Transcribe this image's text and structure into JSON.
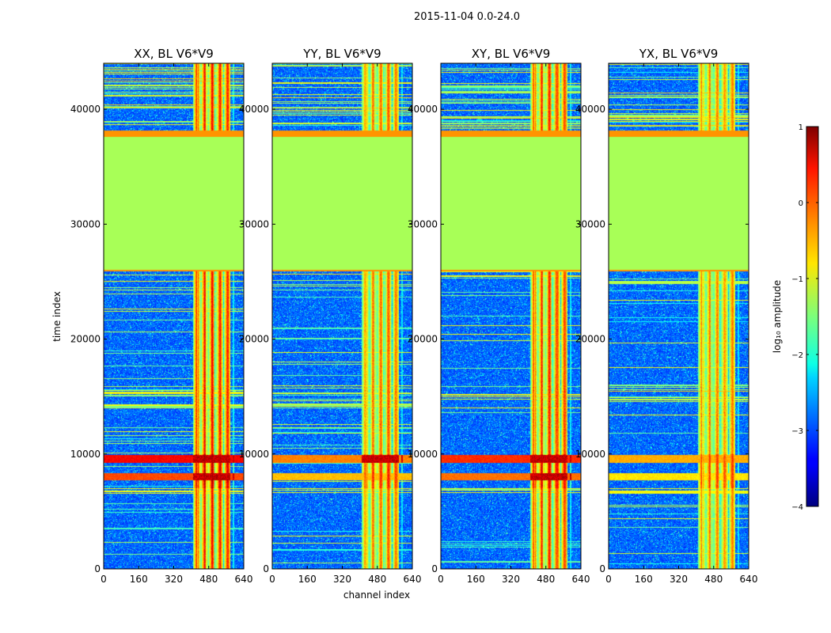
{
  "chart_data": {
    "type": "heatmap",
    "title": "2015-11-04 0.0-24.0",
    "xlabel": "channel index",
    "ylabel": "time index",
    "xlim": [
      0,
      640
    ],
    "ylim": [
      0,
      44000
    ],
    "x_ticks": [
      0,
      160,
      320,
      480,
      640
    ],
    "y_ticks": [
      0,
      10000,
      20000,
      30000,
      40000
    ],
    "x_tick_labels": [
      "0",
      "160",
      "320",
      "480",
      "640"
    ],
    "y_tick_labels": [
      "0",
      "10000",
      "20000",
      "30000",
      "40000"
    ],
    "colormap": "jet",
    "panels": [
      {
        "title": "XX, BL V6*V9",
        "rfi_intensity": 1.0
      },
      {
        "title": "YY, BL V6*V9",
        "rfi_intensity": 0.85
      },
      {
        "title": "XY, BL V6*V9",
        "rfi_intensity": 0.95
      },
      {
        "title": "YX, BL V6*V9",
        "rfi_intensity": 0.8
      }
    ],
    "flagged_time_range": [
      26000,
      37600
    ],
    "flagged_value_log10": -1.3,
    "rfi_channel_range": [
      410,
      580
    ],
    "colorbar": {
      "label": "log₁₀ amplitude",
      "min": -4,
      "max": 1,
      "ticks": [
        -4,
        -3,
        -2,
        -1,
        0,
        1
      ],
      "tick_labels": [
        "−4",
        "−3",
        "−2",
        "−1",
        "0",
        "1"
      ]
    }
  }
}
